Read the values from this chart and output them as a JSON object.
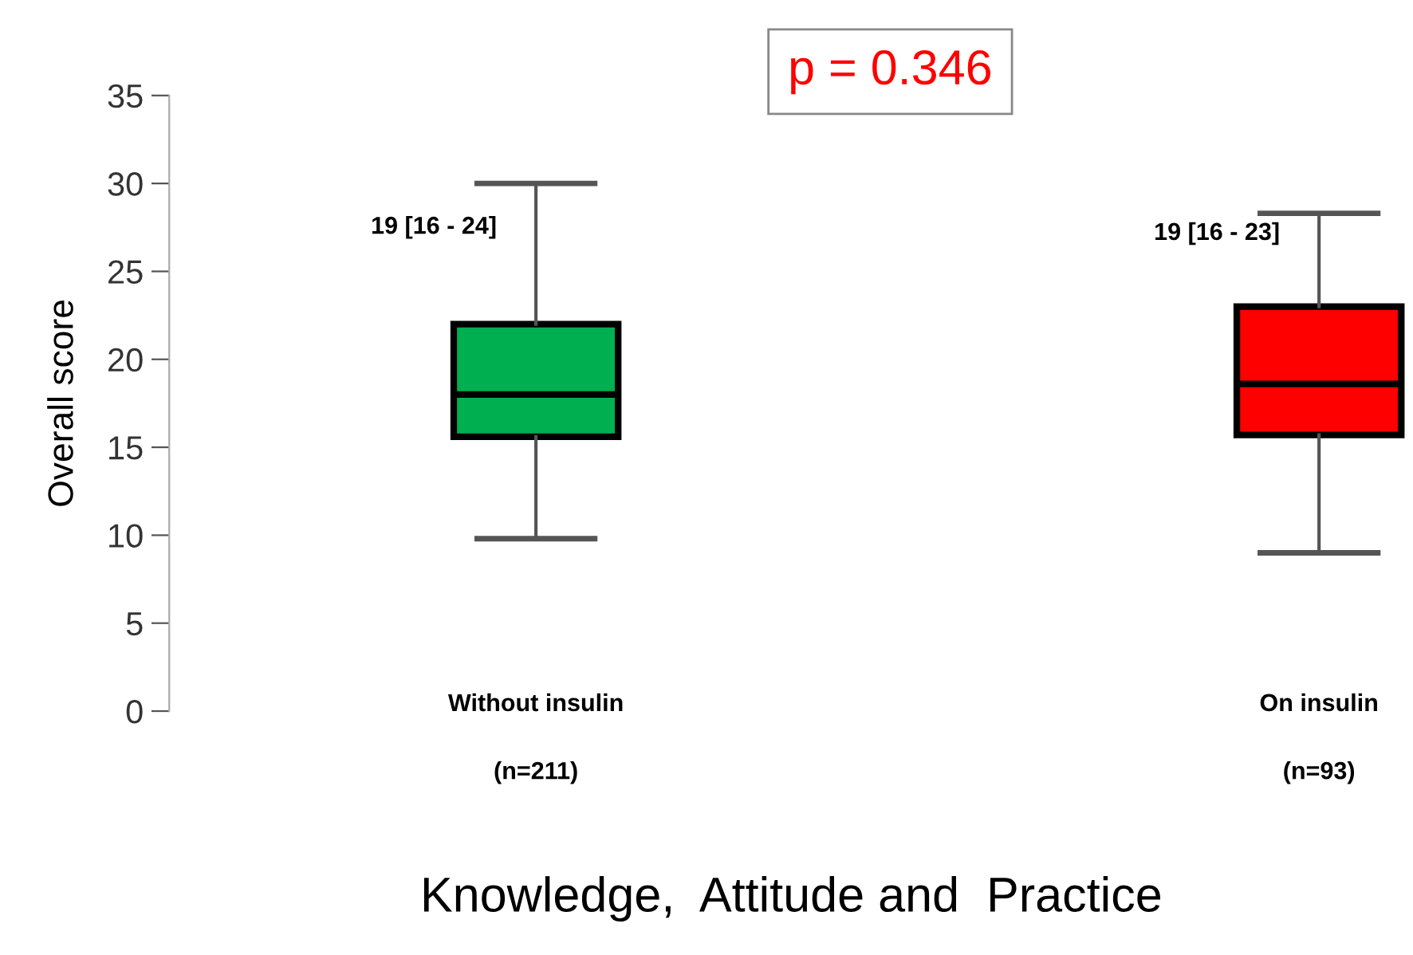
{
  "chart_data": {
    "type": "box",
    "xlabel": "Knowledge,  Attitude and  Practice",
    "ylabel": "Overall score",
    "categories": [
      "Without insulin",
      "On insulin"
    ],
    "colors": [
      "#00b050",
      "#ff0000"
    ],
    "boxes": [
      {
        "low": 9.8,
        "q1": 15.6,
        "median": 18,
        "q3": 22,
        "high": 30
      },
      {
        "low": 9,
        "q1": 15.7,
        "median": 18.6,
        "q3": 23,
        "high": 28.3
      }
    ],
    "annotations": [
      "(n=211)",
      "(n=93)",
      "19 [16 - 24]",
      "19 [16 - 23]",
      "p = 0.346"
    ],
    "ylim": [
      0,
      35
    ],
    "yticks": [
      0,
      5,
      10,
      15,
      20,
      25,
      30,
      35
    ],
    "grid": false,
    "legend": false
  }
}
